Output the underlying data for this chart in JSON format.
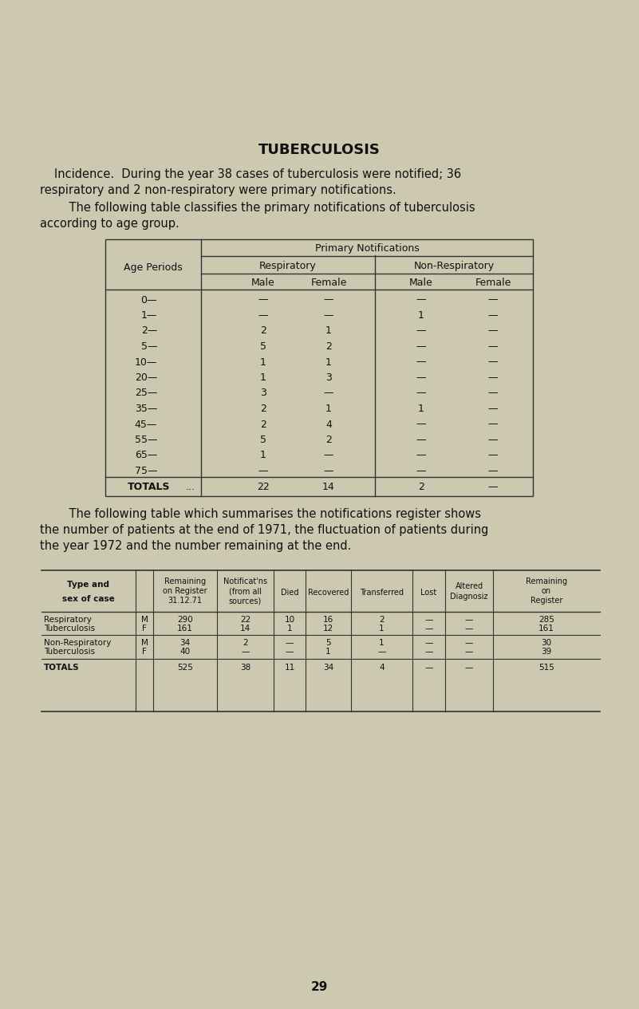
{
  "bg_color": "#cdc9b0",
  "title": "TUBERCULOSIS",
  "para1_line1": "Incidence.  During the year 38 cases of tuberculosis were notified; 36",
  "para1_line2": "respiratory and 2 non-respiratory were primary notifications.",
  "para2_line1": "    The following table classifies the primary notifications of tuberculosis",
  "para2_line2": "according to age group.",
  "para3_line1": "    The following table which summarises the notifications register shows",
  "para3_line2": "the number of patients at the end of 1971, the fluctuation of patients during",
  "para3_line3": "the year 1972 and the number remaining at the end.",
  "page_number": "29",
  "table1": {
    "age_periods": [
      "0—",
      "1—",
      "2—",
      "5—",
      "10—",
      "20—",
      "25—",
      "35—",
      "45—",
      "55—",
      "65—",
      "75—"
    ],
    "resp_male": [
      "—",
      "—",
      "2",
      "5",
      "1",
      "1",
      "3",
      "2",
      "2",
      "5",
      "1",
      "—"
    ],
    "resp_female": [
      "—",
      "—",
      "1",
      "2",
      "1",
      "3",
      "—",
      "1",
      "4",
      "2",
      "—",
      "—"
    ],
    "nonresp_male": [
      "—",
      "1",
      "—",
      "—",
      "—",
      "—",
      "—",
      "1",
      "—",
      "—",
      "—",
      "—"
    ],
    "nonresp_female": [
      "—",
      "—",
      "—",
      "—",
      "—",
      "—",
      "—",
      "—",
      "—",
      "—",
      "—",
      "—"
    ],
    "total_resp_male": "22",
    "total_resp_female": "14",
    "total_nonresp_male": "2",
    "total_nonresp_female": "—"
  },
  "table2": {
    "rows": [
      [
        "Respiratory",
        "M",
        "290",
        "22",
        "10",
        "16",
        "2",
        "—",
        "—",
        "285"
      ],
      [
        "Tuberculosis",
        "F",
        "161",
        "14",
        "1",
        "12",
        "1",
        "—",
        "—",
        "161"
      ],
      [
        "Non-Respiratory",
        "M",
        "34",
        "2",
        "—",
        "5",
        "1",
        "—",
        "—",
        "30"
      ],
      [
        "Tuberculosis",
        "F",
        "40",
        "—",
        "—",
        "1",
        "—",
        "—",
        "—",
        "39"
      ],
      [
        "TOTALS",
        "",
        "525",
        "38",
        "11",
        "34",
        "4",
        "—",
        "—",
        "515"
      ]
    ]
  }
}
